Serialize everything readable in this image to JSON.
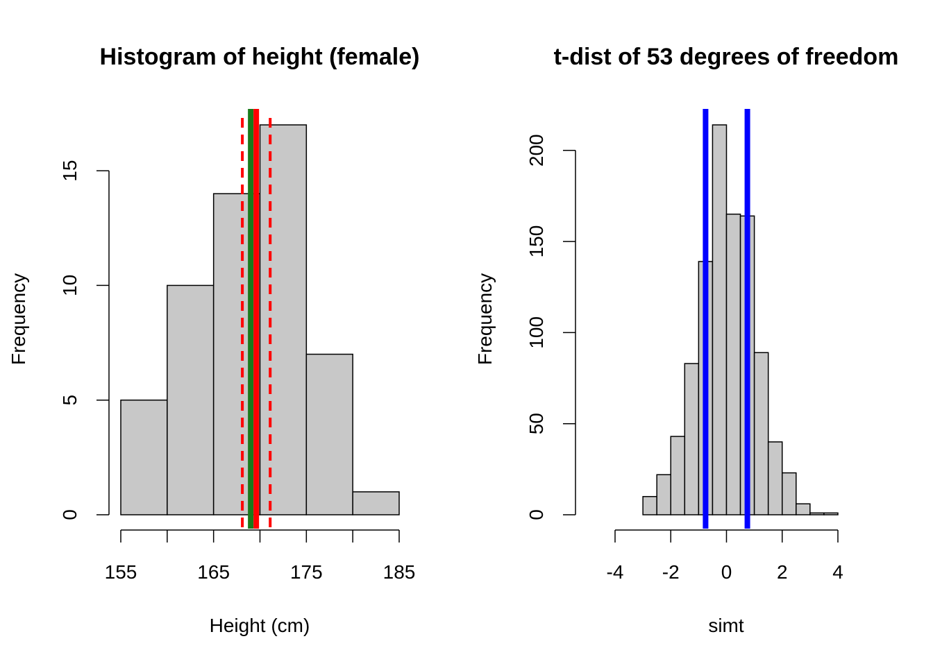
{
  "chart_data": [
    {
      "type": "bar",
      "subtype": "histogram",
      "title": "Histogram of height (female)",
      "xlabel": "Height (cm)",
      "ylabel": "Frequency",
      "bin_edges": [
        155,
        160,
        165,
        170,
        175,
        180,
        185
      ],
      "values": [
        5,
        10,
        14,
        17,
        7,
        1
      ],
      "xlim": [
        155,
        185
      ],
      "ylim": [
        0,
        17
      ],
      "x_ticks": [
        155,
        160,
        165,
        170,
        175,
        180,
        185
      ],
      "x_tick_labels": [
        "155",
        "",
        "165",
        "",
        "175",
        "",
        "185"
      ],
      "y_ticks": [
        0,
        5,
        10,
        15
      ],
      "y_tick_labels": [
        "0",
        "5",
        "10",
        "15"
      ],
      "bar_color": "#c8c8c8",
      "vlines": [
        {
          "x": 169.0,
          "color": "#1a7a1a",
          "style": "solid"
        },
        {
          "x": 169.6,
          "color": "#ff0000",
          "style": "solid"
        },
        {
          "x": 168.1,
          "color": "#ff0000",
          "style": "dashed"
        },
        {
          "x": 171.1,
          "color": "#ff0000",
          "style": "dashed"
        }
      ],
      "grid": false
    },
    {
      "type": "bar",
      "subtype": "histogram",
      "title": "t-dist of 53 degrees of freedom",
      "xlabel": "simt",
      "ylabel": "Frequency",
      "bin_edges": [
        -3,
        -2.5,
        -2,
        -1.5,
        -1,
        -0.5,
        0,
        0.5,
        1,
        1.5,
        2,
        2.5,
        3,
        3.5,
        4
      ],
      "values": [
        10,
        22,
        43,
        83,
        139,
        214,
        165,
        164,
        89,
        40,
        23,
        6,
        1,
        1
      ],
      "xlim": [
        -4,
        4
      ],
      "ylim": [
        0,
        214
      ],
      "x_ticks": [
        -4,
        -2,
        0,
        2,
        4
      ],
      "x_tick_labels": [
        "-4",
        "-2",
        "0",
        "2",
        "4"
      ],
      "y_ticks": [
        0,
        50,
        100,
        150,
        200
      ],
      "y_tick_labels": [
        "0",
        "50",
        "100",
        "150",
        "200"
      ],
      "bar_color": "#c8c8c8",
      "vlines": [
        {
          "x": -0.75,
          "color": "#0000ff",
          "style": "solid"
        },
        {
          "x": 0.75,
          "color": "#0000ff",
          "style": "solid"
        }
      ],
      "grid": false
    }
  ]
}
